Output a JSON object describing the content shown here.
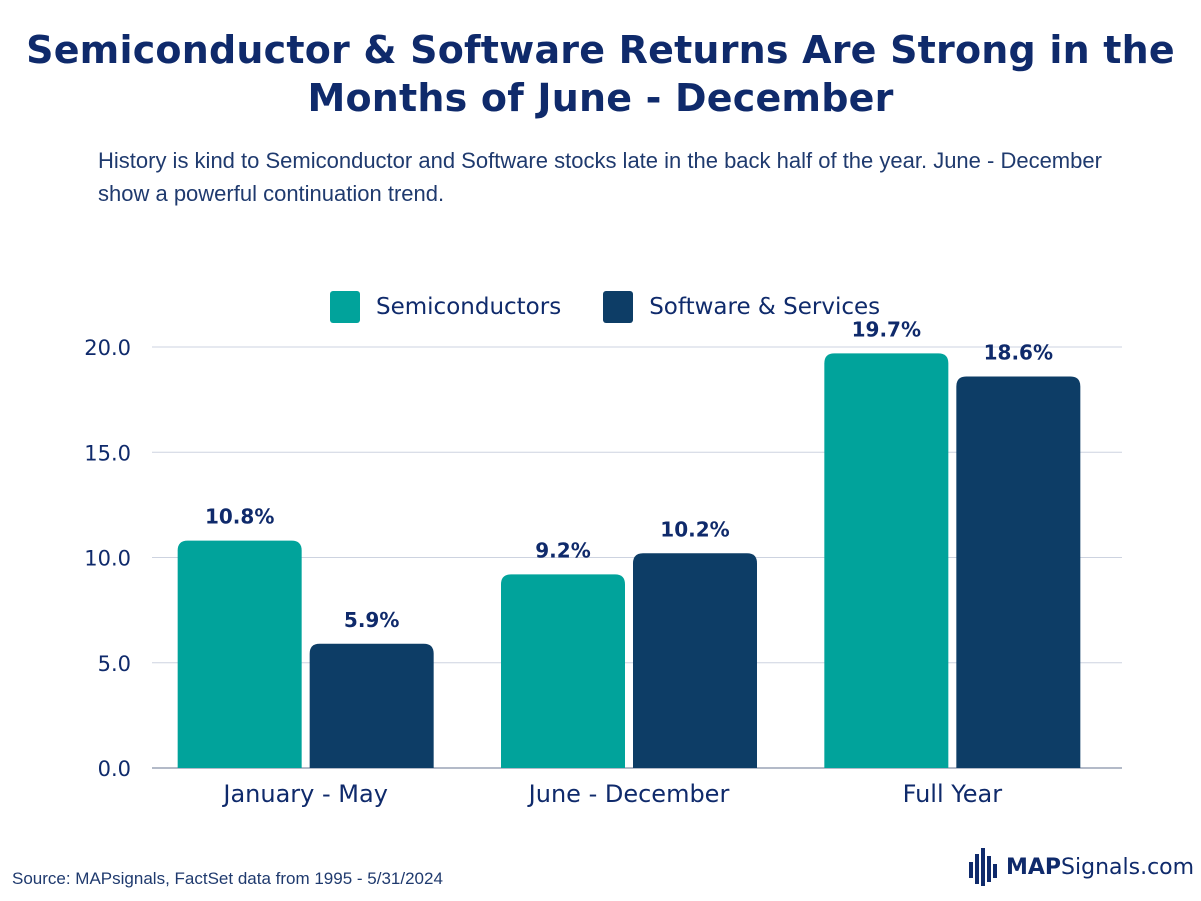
{
  "title": "Semiconductor & Software Returns Are Strong in the Months of June - December",
  "subtitle": "History is kind to Semiconductor and Software stocks late in the back half of the year. June - December show a powerful continuation trend.",
  "source": "Source: MAPsignals, FactSet data from 1995 - 5/31/2024",
  "brand": {
    "bold": "MAP",
    "regular": "Signals.com",
    "icon": "bar-chart-logo-icon"
  },
  "colors": {
    "semis": "#01a39b",
    "software": "#0d3d66",
    "text": "#0f2a6b",
    "grid": "#cdd3e0"
  },
  "chart_data": {
    "type": "bar",
    "categories": [
      "January - May",
      "June - December",
      "Full Year"
    ],
    "series": [
      {
        "name": "Semiconductors",
        "values": [
          10.8,
          9.2,
          19.7
        ],
        "labels": [
          "10.8%",
          "9.2%",
          "19.7%"
        ]
      },
      {
        "name": "Software & Services",
        "values": [
          5.9,
          10.2,
          18.6
        ],
        "labels": [
          "5.9%",
          "10.2%",
          "18.6%"
        ]
      }
    ],
    "yticks": [
      0,
      5,
      10,
      15,
      20
    ],
    "ytick_labels": [
      "0.0",
      "5.0",
      "10.0",
      "15.0",
      "20.0"
    ],
    "ylim": [
      0,
      20
    ],
    "legend_position": "top",
    "grid": true
  }
}
